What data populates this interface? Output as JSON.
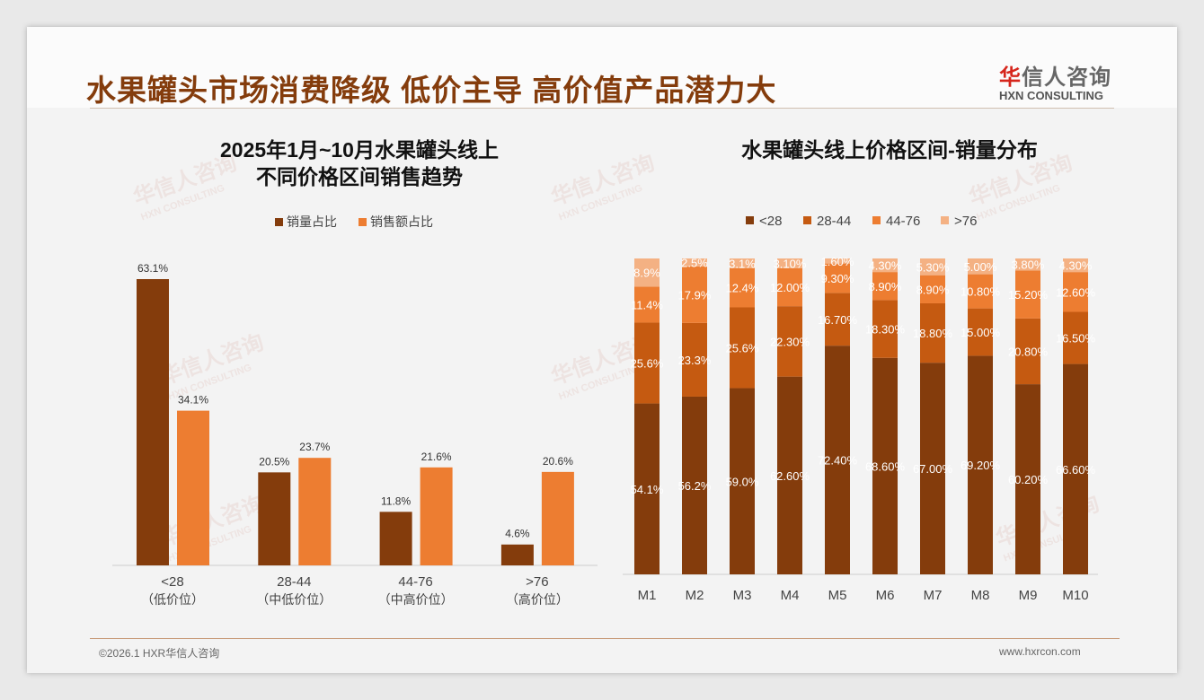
{
  "header": {
    "title": "水果罐头市场消费降级 低价主导 高价值产品潜力大",
    "logo_cn_first": "华",
    "logo_cn_rest": "信人咨询",
    "logo_en": "HXN CONSULTING"
  },
  "footer": {
    "copyright": "©2026.1 HXR华信人咨询",
    "url": "www.hxrcon.com"
  },
  "colors": {
    "dark": "#843C0C",
    "mid": "#C55A11",
    "orange": "#ED7D31",
    "light": "#F4B183"
  },
  "chart_data": [
    {
      "type": "bar",
      "title_line1": "2025年1月~10月水果罐头线上",
      "title_line2": "不同价格区间销售趋势",
      "categories": [
        "<28",
        "28-44",
        "44-76",
        ">76"
      ],
      "category_sublabels": [
        "（低价位）",
        "（中低价位）",
        "（中高价位）",
        "（高价位）"
      ],
      "series": [
        {
          "name": "销量占比",
          "values": [
            63.1,
            20.5,
            11.8,
            4.6
          ]
        },
        {
          "name": "销售额占比",
          "values": [
            34.1,
            23.7,
            21.6,
            20.6
          ]
        }
      ],
      "unit": "%",
      "legend": "top-center",
      "ylim": [
        0,
        63.1
      ]
    },
    {
      "type": "bar",
      "stacked": true,
      "title": "水果罐头线上价格区间-销量分布",
      "categories": [
        "M1",
        "M2",
        "M3",
        "M4",
        "M5",
        "M6",
        "M7",
        "M8",
        "M9",
        "M10"
      ],
      "series": [
        {
          "name": "<28",
          "values": [
            54.1,
            56.2,
            59.0,
            62.6,
            72.4,
            68.6,
            67.0,
            69.2,
            60.2,
            66.6
          ],
          "labels": [
            "54.1%",
            "56.2%",
            "59.0%",
            "62.60%",
            "72.40%",
            "68.60%",
            "67.00%",
            "69.20%",
            "60.20%",
            "66.60%"
          ]
        },
        {
          "name": "28-44",
          "values": [
            25.6,
            23.3,
            25.6,
            22.3,
            16.7,
            18.3,
            18.8,
            15.0,
            20.8,
            16.5
          ],
          "labels": [
            "25.6%",
            "23.3%",
            "25.6%",
            "22.30%",
            "16.70%",
            "18.30%",
            "18.80%",
            "15.00%",
            "20.80%",
            "16.50%"
          ]
        },
        {
          "name": "44-76",
          "values": [
            11.4,
            17.9,
            12.4,
            12.0,
            9.3,
            8.9,
            8.9,
            10.8,
            15.2,
            12.6
          ],
          "labels": [
            "11.4%",
            "17.9%",
            "12.4%",
            "12.00%",
            "9.30%",
            "8.90%",
            "8.90%",
            "10.80%",
            "15.20%",
            "12.60%"
          ]
        },
        {
          "name": ">76",
          "values": [
            8.9,
            2.5,
            3.1,
            3.1,
            1.6,
            4.3,
            5.3,
            5.0,
            3.8,
            4.3
          ],
          "labels": [
            "8.9%",
            "2.5%",
            "3.1%",
            "3.10%",
            "1.60%",
            "4.30%",
            "5.30%",
            "5.00%",
            "3.80%",
            "4.30%"
          ]
        }
      ],
      "legend": "top-center",
      "ylim": [
        0,
        100
      ]
    }
  ]
}
